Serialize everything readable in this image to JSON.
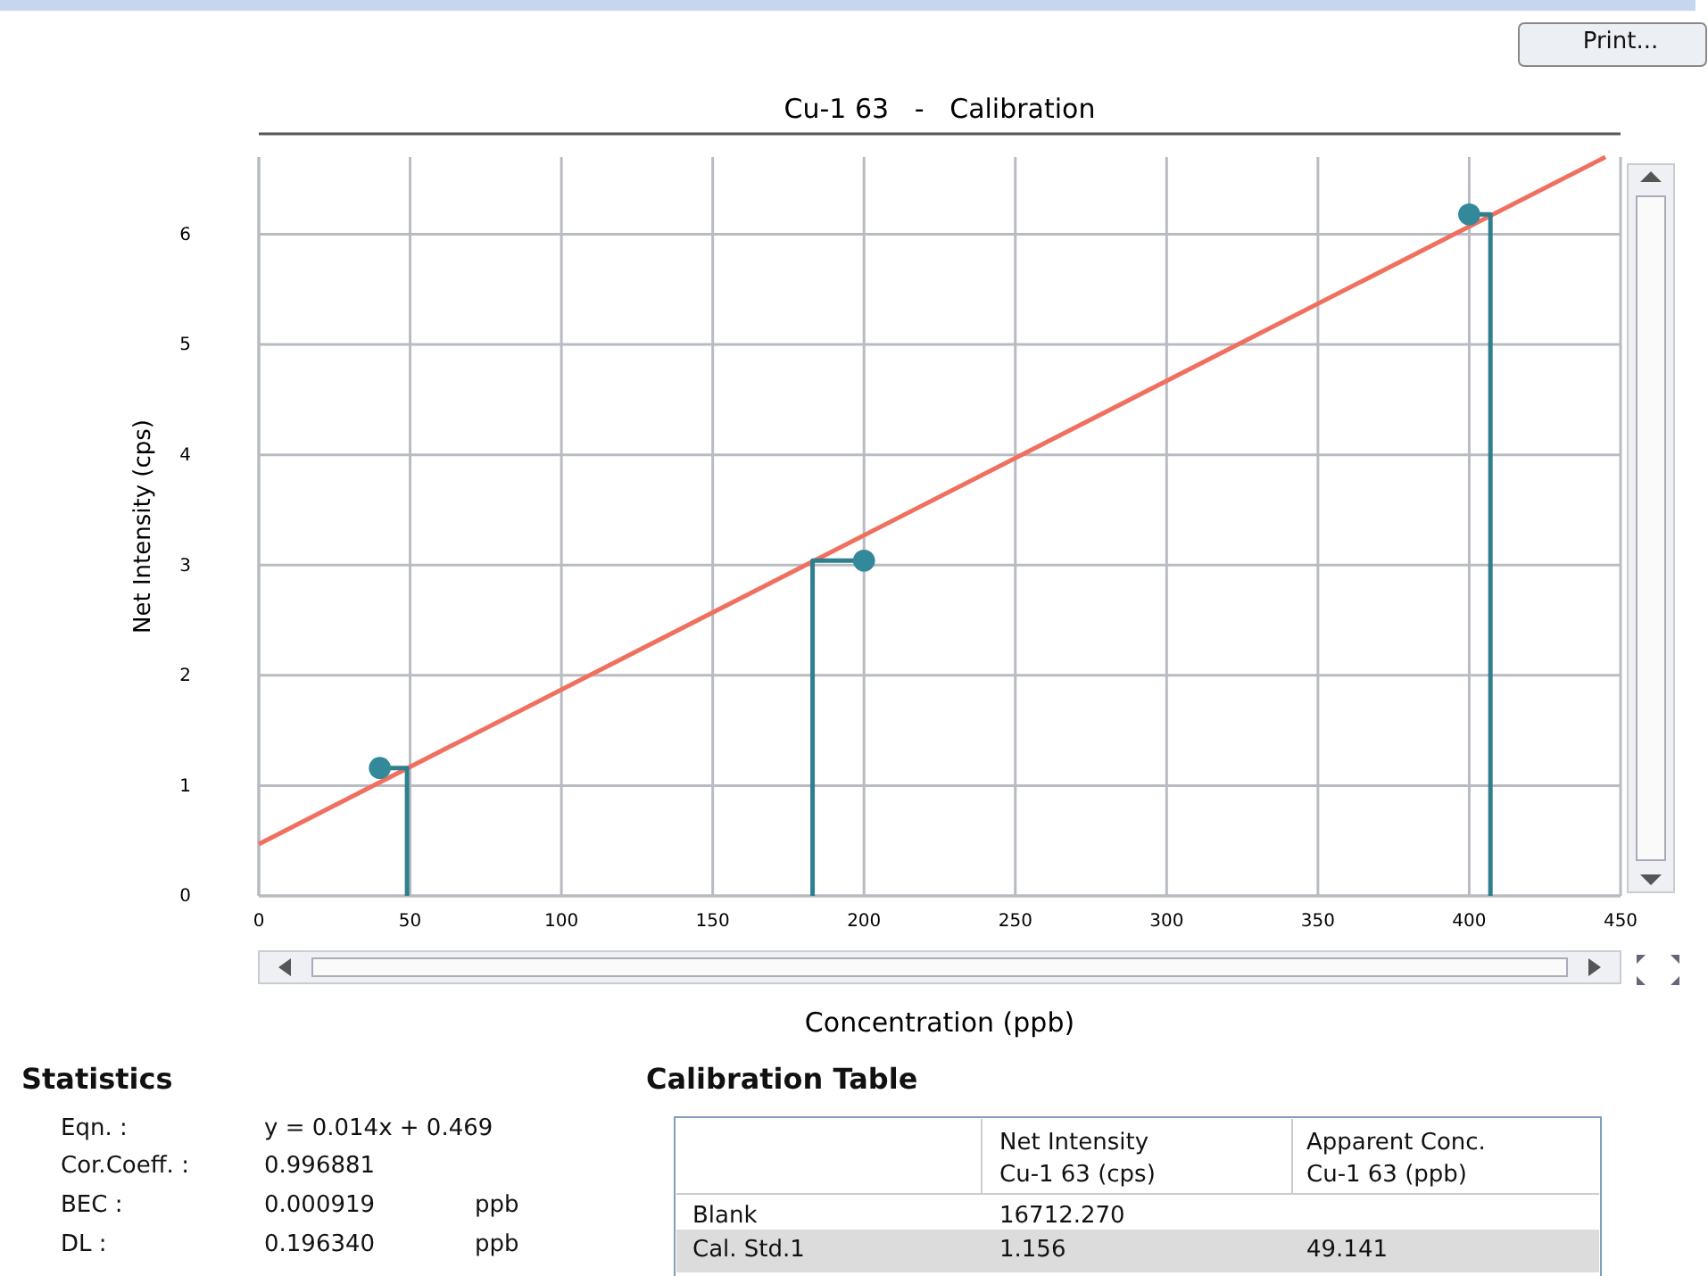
{
  "chart_data": {
    "type": "scatter",
    "title": "Cu-1 63   -   Calibration",
    "xlabel": "Concentration (ppb)",
    "ylabel": "Net Intensity (cps)",
    "xlim": [
      0,
      450
    ],
    "xticks": [
      0,
      50,
      100,
      150,
      200,
      250,
      300,
      350,
      400,
      450
    ],
    "ylim": [
      0,
      6.7
    ],
    "yticks": [
      0,
      1,
      2,
      3,
      4,
      5,
      6
    ],
    "grid": true,
    "marker": "circle",
    "series": [
      {
        "type": "line",
        "marker": "none",
        "color": "#f07060",
        "x": [
          0,
          445
        ],
        "values": [
          0.47,
          6.7
        ]
      },
      {
        "type": "line",
        "marker": "none",
        "color": "#2f7f8e",
        "x": [
          49,
          49,
          40
        ],
        "values": [
          0,
          1.16,
          1.16
        ]
      },
      {
        "type": "line",
        "marker": "none",
        "color": "#2f7f8e",
        "x": [
          183,
          183,
          200
        ],
        "values": [
          0,
          3.04,
          3.04
        ]
      },
      {
        "type": "line",
        "marker": "none",
        "color": "#2f7f8e",
        "x": [
          407,
          407,
          400
        ],
        "values": [
          0,
          6.18,
          6.18
        ]
      },
      {
        "color": "#33899a",
        "x": [
          40,
          200,
          400
        ],
        "values": [
          1.16,
          3.04,
          6.18
        ]
      }
    ],
    "annotations": [
      "Print...",
      "Statistics",
      "Eqn. :",
      "y = 0.014x + 0.469",
      "Cor.Coeff. :",
      "0.996881",
      "BEC :",
      "0.000919",
      "ppb",
      "DL :",
      "0.196340",
      "ppb",
      "Calibration Table",
      "Net Intensity",
      "Cu-1 63 (cps)",
      "Apparent Conc.",
      "Cu-1 63 (ppb)",
      "Blank",
      "16712.270",
      "Cal. Std.1",
      "1.156",
      "49.141"
    ]
  }
}
